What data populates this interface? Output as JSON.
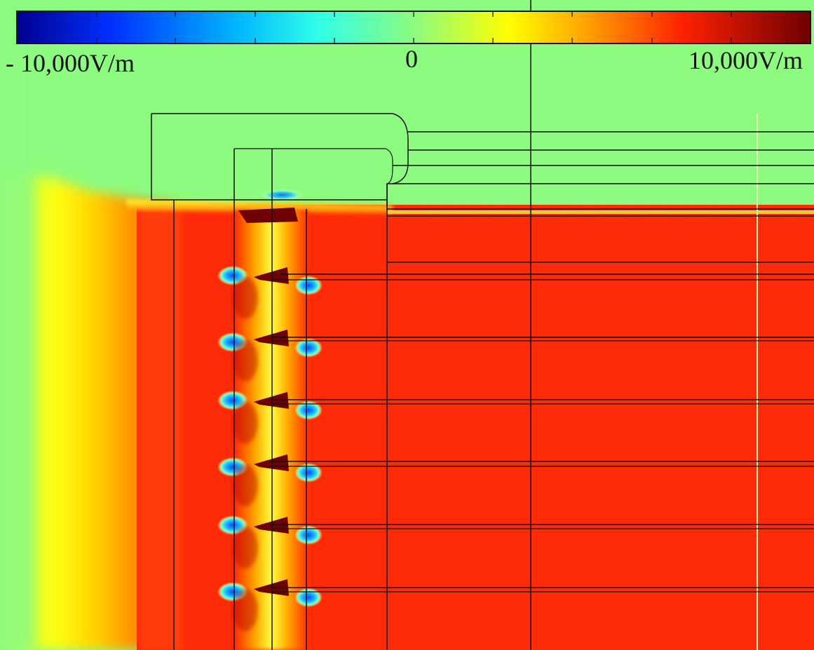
{
  "colorbar": {
    "min_label": "- 10,000V/m",
    "mid_label": "0",
    "max_label": "10,000V/m",
    "min_value": -10000,
    "mid_value": 0,
    "max_value": 10000,
    "unit": "V/m",
    "colormap": [
      "#00008f",
      "#0040ff",
      "#00c0ff",
      "#40ffe0",
      "#9cff7a",
      "#ffff00",
      "#ffa000",
      "#ff2000",
      "#800000"
    ]
  },
  "field_colors": {
    "air": "#8cfb80",
    "gradient_edge": "#ffff22",
    "dielectric_high": "#ff2a08",
    "hotspot_negative": "#1a7aff",
    "hotspot_positive": "#6e0000",
    "outline": "#111111"
  }
}
